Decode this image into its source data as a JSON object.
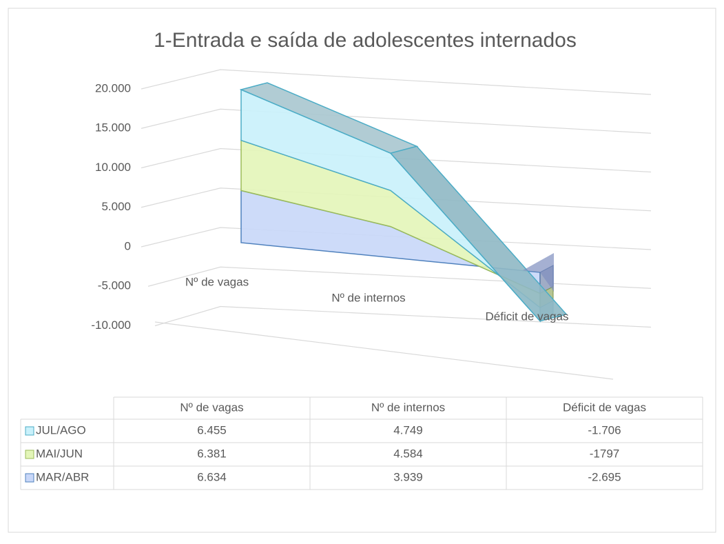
{
  "chart_data": {
    "type": "area3d",
    "title": "1-Entrada e saída de adolescentes internados",
    "categories": [
      "Nº de vagas",
      "Nº de internos",
      "Déficit de vagas"
    ],
    "series": [
      {
        "name": "JUL/AGO",
        "color": "#c9f1fb",
        "values": [
          6455,
          4749,
          -1706
        ],
        "value_labels": [
          "6.455",
          "4.749",
          "-1.706"
        ]
      },
      {
        "name": "MAI/JUN",
        "color": "#e3f5b8",
        "values": [
          6381,
          4584,
          -1797
        ],
        "value_labels": [
          "6.381",
          "4.584",
          "-1797"
        ]
      },
      {
        "name": "MAR/ABR",
        "color": "#c8d7f8",
        "values": [
          6634,
          3939,
          -2695
        ],
        "value_labels": [
          "6.634",
          "3.939",
          "-2.695"
        ]
      }
    ],
    "stacked": true,
    "ylim": [
      -10000,
      20000
    ],
    "yticks": [
      {
        "value": -10000,
        "label": "-10.000"
      },
      {
        "value": -5000,
        "label": "-5.000"
      },
      0,
      {
        "value": 5000,
        "label": "5.000"
      },
      {
        "value": 10000,
        "label": "10.000"
      },
      {
        "value": 15000,
        "label": "15.000"
      },
      {
        "value": 20000,
        "label": "20.000"
      }
    ],
    "grid": true
  }
}
